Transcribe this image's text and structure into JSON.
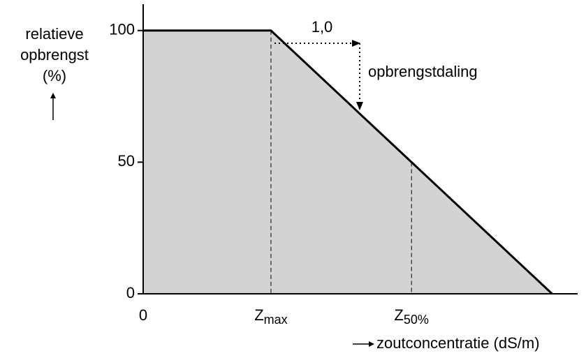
{
  "chart_data": {
    "type": "area",
    "y_label": [
      "relatieve",
      "opbrengst",
      "(%)"
    ],
    "x_label": "zoutconcentratie (dS/m)",
    "annotations": [
      "1,0",
      "opbrengstdaling"
    ],
    "x": [
      0,
      1,
      2.1,
      3.2
    ],
    "series": [
      {
        "color": "#d3d3d3",
        "values": [
          100,
          100,
          50,
          0
        ]
      }
    ],
    "xlim": [
      0,
      3.4
    ],
    "xticks": [
      {
        "value": 0,
        "label": "0"
      },
      {
        "value": 1,
        "label": "Z",
        "sub": "max"
      },
      {
        "value": 2.1,
        "label": "Z",
        "sub": "50%"
      }
    ],
    "ylim": [
      0,
      110
    ],
    "yticks": [
      0,
      50,
      100
    ]
  }
}
